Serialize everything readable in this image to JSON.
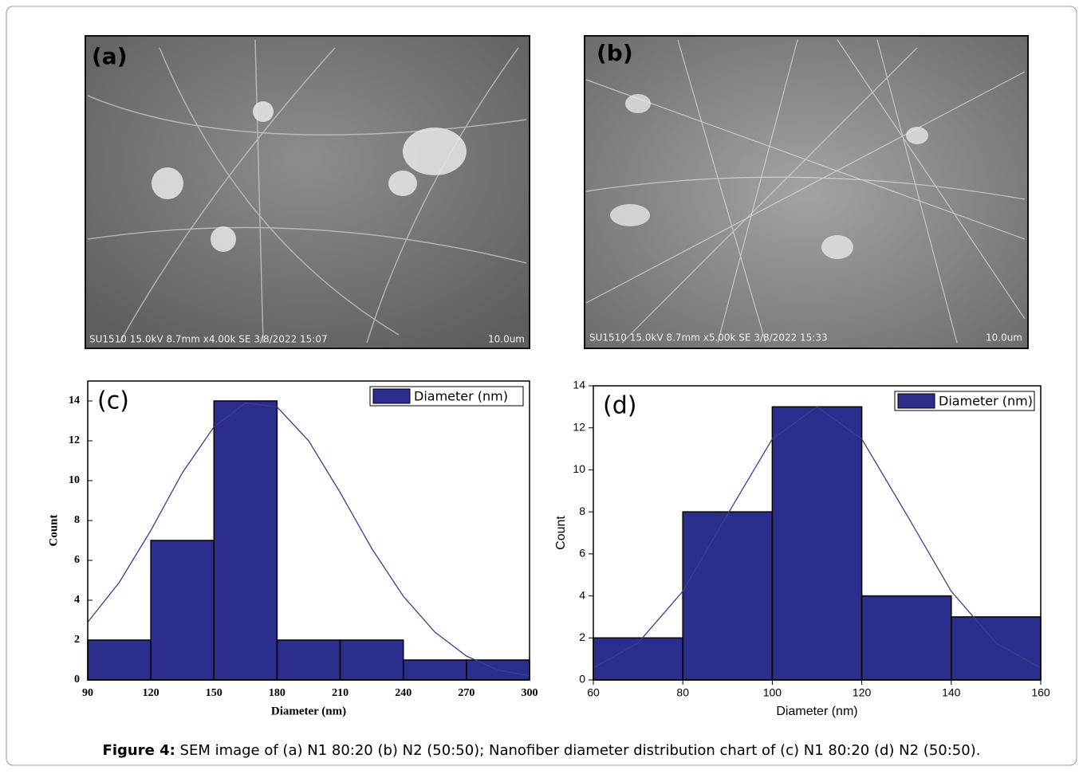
{
  "images": [
    {
      "label": "(a)",
      "info": "SU1510 15.0kV 8.7mm x4.00k SE  3/8/2022 15:07",
      "scale": "10.0um"
    },
    {
      "label": "(b)",
      "info": "SU1510 15.0kV 8.7mm x5.00k SE  3/8/2022 15:33",
      "scale": "10.0um"
    }
  ],
  "chart_data": [
    {
      "type": "histogram",
      "panel_label": "(c)",
      "xlabel": "Diameter (nm)",
      "ylabel": "Count",
      "bins": [
        90,
        120,
        150,
        180,
        210,
        240,
        270,
        300
      ],
      "series": [
        {
          "name": "Diameter (nm)",
          "color": "#2b2e8c",
          "values": [
            2,
            7,
            14,
            2,
            2,
            1,
            1
          ]
        }
      ],
      "fit": {
        "color": "#3b3f8f",
        "x": [
          90,
          105,
          120,
          135,
          150,
          165,
          180,
          195,
          210,
          225,
          240,
          255,
          270,
          285,
          300
        ],
        "values": [
          2.9,
          4.9,
          7.5,
          10.4,
          12.7,
          13.9,
          13.7,
          12.0,
          9.4,
          6.6,
          4.2,
          2.4,
          1.2,
          0.5,
          0.2
        ]
      },
      "xlim": [
        90,
        300
      ],
      "ylim": [
        0,
        15
      ],
      "xticks": [
        90,
        120,
        150,
        180,
        210,
        240,
        270,
        300
      ],
      "yticks": [
        0,
        2,
        4,
        6,
        8,
        10,
        12,
        14
      ],
      "legend": "upper right"
    },
    {
      "type": "histogram",
      "panel_label": "(d)",
      "xlabel": "Diameter (nm)",
      "ylabel": "Count",
      "bins": [
        60,
        80,
        100,
        120,
        140,
        160
      ],
      "series": [
        {
          "name": "Diameter (nm)",
          "color": "#2b2e8c",
          "values": [
            2,
            8,
            13,
            4,
            3
          ]
        }
      ],
      "fit": {
        "color": "#3b3f8f",
        "x": [
          60,
          70,
          80,
          90,
          100,
          110,
          120,
          130,
          140,
          150,
          160
        ],
        "values": [
          0.57,
          1.76,
          4.22,
          7.88,
          11.47,
          13,
          11.47,
          7.88,
          4.22,
          1.76,
          0.57
        ]
      },
      "xlim": [
        60,
        160
      ],
      "ylim": [
        0,
        14
      ],
      "xticks": [
        60,
        80,
        100,
        120,
        140,
        160
      ],
      "yticks": [
        0,
        2,
        4,
        6,
        8,
        10,
        12,
        14
      ],
      "legend": "upper right"
    }
  ],
  "caption": {
    "bold": "Figure 4:",
    "text": " SEM image of (a) N1 80:20 (b) N2 (50:50); Nanofiber diameter distribution chart of (c) N1 80:20 (d) N2 (50:50)."
  }
}
